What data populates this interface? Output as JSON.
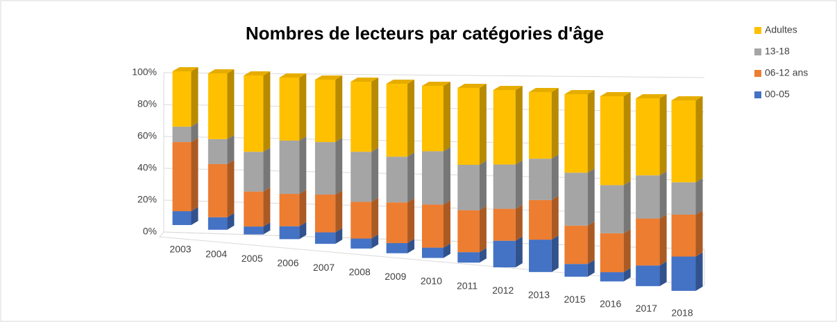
{
  "chart_data": {
    "type": "bar3d",
    "title": "Nombres de lecteurs par catégories d'âge",
    "categories": [
      "2003",
      "2004",
      "2005",
      "2006",
      "2007",
      "2008",
      "2009",
      "2010",
      "2011",
      "2012",
      "2013",
      "2015",
      "2016",
      "2017",
      "2018"
    ],
    "series": [
      {
        "name": "00-05",
        "color": "#4472c4",
        "values": [
          9,
          8,
          5,
          8,
          7,
          6,
          6,
          6,
          6,
          15,
          18,
          7,
          5,
          11,
          18
        ]
      },
      {
        "name": "06-12 ans",
        "color": "#ed7d31",
        "values": [
          45,
          34,
          22,
          20,
          23,
          22,
          24,
          25,
          24,
          18,
          22,
          21,
          21,
          25,
          22
        ]
      },
      {
        "name": "13-18",
        "color": "#a5a5a5",
        "values": [
          10,
          16,
          25,
          33,
          32,
          30,
          27,
          31,
          26,
          25,
          23,
          29,
          26,
          23,
          17
        ]
      },
      {
        "name": "Adultes",
        "color": "#ffc000",
        "values": [
          36,
          42,
          48,
          39,
          38,
          42,
          43,
          38,
          44,
          42,
          37,
          43,
          48,
          41,
          43
        ]
      }
    ],
    "ylim": [
      0,
      100
    ],
    "yticks": [
      {
        "value": 0,
        "label": "0%"
      },
      {
        "value": 20,
        "label": "20%"
      },
      {
        "value": 40,
        "label": "40%"
      },
      {
        "value": 60,
        "label": "60%"
      },
      {
        "value": 80,
        "label": "80%"
      },
      {
        "value": 100,
        "label": "100%"
      }
    ],
    "grid": true,
    "legend": "right"
  }
}
